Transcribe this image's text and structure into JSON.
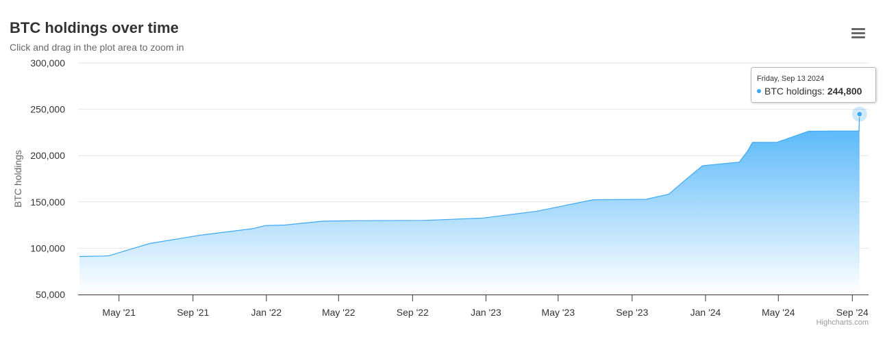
{
  "title": "BTC holdings over time",
  "subtitle": "Click and drag in the plot area to zoom in",
  "credits": "Highcharts.com",
  "menu_icon": "hamburger-menu-icon",
  "colors": {
    "series": "#3fa9f5",
    "fill_top": "#4cb3f9",
    "fill_bottom": "#ffffff"
  },
  "tooltip": {
    "date": "Friday, Sep 13 2024",
    "series_name": "BTC holdings",
    "separator": ": ",
    "value": "244,800"
  },
  "chart_data": {
    "type": "area",
    "title": "BTC holdings over time",
    "subtitle": "Click and drag in the plot area to zoom in",
    "xlabel": "",
    "ylabel": "BTC holdings",
    "ylim": [
      50000,
      300000
    ],
    "yticks": [
      50000,
      100000,
      150000,
      200000,
      250000,
      300000
    ],
    "ytick_labels": [
      "50,000",
      "100,000",
      "150,000",
      "200,000",
      "250,000",
      "300,000"
    ],
    "xlim": [
      "2021-02-22",
      "2024-09-28"
    ],
    "xticks": [
      "2021-05-01",
      "2021-09-01",
      "2022-01-01",
      "2022-05-01",
      "2022-09-01",
      "2023-01-01",
      "2023-05-01",
      "2023-09-01",
      "2024-01-01",
      "2024-05-01",
      "2024-09-01"
    ],
    "xtick_labels": [
      "May '21",
      "Sep '21",
      "Jan '22",
      "May '22",
      "Sep '22",
      "Jan '23",
      "May '23",
      "Sep '23",
      "Jan '24",
      "May '24",
      "Sep '24"
    ],
    "grid": true,
    "legend": "none",
    "series": [
      {
        "name": "BTC holdings",
        "x": [
          "2021-02-24",
          "2021-04-05",
          "2021-04-14",
          "2021-06-21",
          "2021-09-13",
          "2021-12-09",
          "2021-12-30",
          "2022-02-01",
          "2022-04-05",
          "2022-06-01",
          "2022-09-20",
          "2022-12-24",
          "2022-12-27",
          "2023-03-27",
          "2023-06-28",
          "2023-09-24",
          "2023-11-01",
          "2023-11-30",
          "2023-12-27",
          "2024-02-26",
          "2024-03-11",
          "2024-03-19",
          "2024-04-29",
          "2024-06-20",
          "2024-08-01",
          "2024-09-12",
          "2024-09-13"
        ],
        "values": [
          91064,
          91579,
          91850,
          105085,
          114042,
          121044,
          124391,
          125051,
          129218,
          129699,
          130000,
          132500,
          132600,
          140000,
          152333,
          152800,
          158400,
          174530,
          189150,
          193000,
          205000,
          214246,
          214400,
          226331,
          226500,
          226500,
          244800
        ]
      }
    ]
  }
}
